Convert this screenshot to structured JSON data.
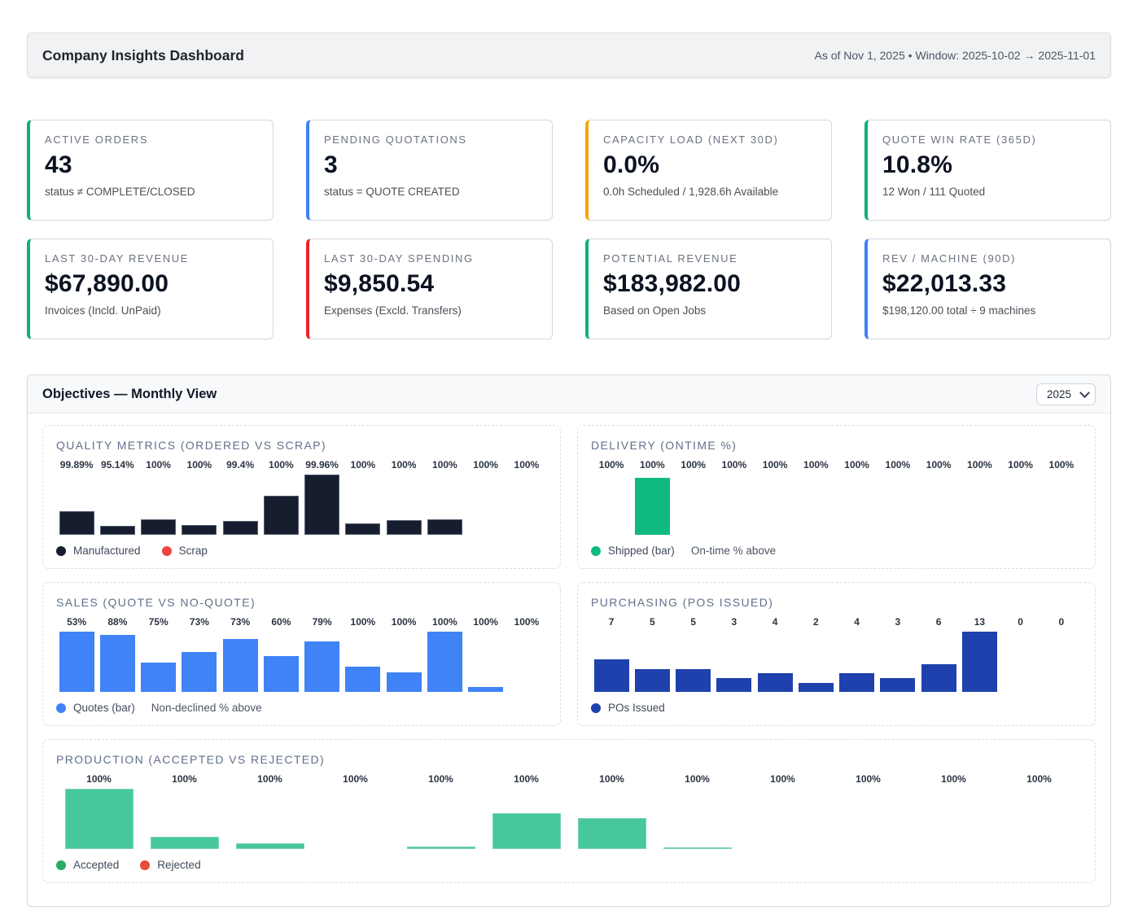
{
  "header": {
    "title": "Company Insights Dashboard",
    "meta": "As of Nov 1, 2025 • Window: 2025-10-02 → 2025-11-01"
  },
  "kpis": [
    {
      "label": "ACTIVE ORDERS",
      "value": "43",
      "sub": "status ≠ COMPLETE/CLOSED",
      "accent": "#12b076"
    },
    {
      "label": "PENDING QUOTATIONS",
      "value": "3",
      "sub": "status = QUOTE CREATED",
      "accent": "#3c82f6"
    },
    {
      "label": "CAPACITY LOAD (NEXT 30D)",
      "value": "0.0%",
      "sub": "0.0h Scheduled / 1,928.6h Available",
      "accent": "#f6a609"
    },
    {
      "label": "QUOTE WIN RATE (365D)",
      "value": "10.8%",
      "sub": "12 Won / 111 Quoted",
      "accent": "#12b076"
    },
    {
      "label": "LAST 30-DAY REVENUE",
      "value": "$67,890.00",
      "sub": "Invoices (Incld. UnPaid)",
      "accent": "#12b076"
    },
    {
      "label": "LAST 30-DAY SPENDING",
      "value": "$9,850.54",
      "sub": "Expenses (Excld. Transfers)",
      "accent": "#e8252a"
    },
    {
      "label": "POTENTIAL REVENUE",
      "value": "$183,982.00",
      "sub": "Based on Open Jobs",
      "accent": "#12b076"
    },
    {
      "label": "REV / MACHINE (90D)",
      "value": "$22,013.33",
      "sub": "$198,120.00 total ÷ 9 machines",
      "accent": "#3c82f6"
    }
  ],
  "objectives": {
    "title": "Objectives — Monthly View",
    "year_selector": {
      "value": "2025"
    }
  },
  "chart_data": [
    {
      "id": "quality",
      "type": "bar",
      "title": "QUALITY METRICS (ORDERED VS SCRAP)",
      "value_labels": [
        "99.89%",
        "95.14%",
        "100%",
        "100%",
        "99.4%",
        "100%",
        "99.96%",
        "100%",
        "100%",
        "100%",
        "100%",
        "100%"
      ],
      "bar_heights_pct": [
        39,
        15,
        26,
        16,
        23,
        65,
        100,
        19,
        24,
        26,
        0,
        0
      ],
      "bar_color": "#161d2e",
      "bar_border": "rgba(148,163,184,0.5)",
      "legend": [
        {
          "label": "Manufactured",
          "color": "#161d2e"
        },
        {
          "label": "Scrap",
          "color": "#ef4444"
        }
      ]
    },
    {
      "id": "delivery",
      "type": "bar",
      "title": "DELIVERY (ONTIME %)",
      "value_labels": [
        "100%",
        "100%",
        "100%",
        "100%",
        "100%",
        "100%",
        "100%",
        "100%",
        "100%",
        "100%",
        "100%",
        "100%"
      ],
      "bar_heights_pct": [
        0,
        95,
        0,
        0,
        0,
        0,
        0,
        0,
        0,
        0,
        0,
        0
      ],
      "bar_color": "#10b981",
      "legend": [
        {
          "label": "Shipped (bar)",
          "color": "#10b981"
        }
      ],
      "legend_note": "On-time % above"
    },
    {
      "id": "sales",
      "type": "bar",
      "title": "SALES (QUOTE VS NO-QUOTE)",
      "value_labels": [
        "53%",
        "88%",
        "75%",
        "73%",
        "73%",
        "60%",
        "79%",
        "100%",
        "100%",
        "100%",
        "100%",
        "100%"
      ],
      "bar_heights_pct": [
        100,
        95,
        48,
        66,
        88,
        59,
        84,
        42,
        32,
        100,
        8,
        0
      ],
      "bar_color": "#3f83f6",
      "legend": [
        {
          "label": "Quotes (bar)",
          "color": "#3f83f6"
        }
      ],
      "legend_note": "Non-declined % above"
    },
    {
      "id": "purchasing",
      "type": "bar",
      "title": "PURCHASING (POS ISSUED)",
      "value_labels": [
        "7",
        "5",
        "5",
        "3",
        "4",
        "2",
        "4",
        "3",
        "6",
        "13",
        "0",
        "0"
      ],
      "values": [
        7,
        5,
        5,
        3,
        4,
        2,
        4,
        3,
        6,
        13,
        0,
        0
      ],
      "bar_heights_pct": [
        54,
        38,
        38,
        23,
        31,
        15,
        31,
        23,
        46,
        100,
        0,
        0
      ],
      "bar_color": "#1f41ad",
      "legend": [
        {
          "label": "POs Issued",
          "color": "#1f41ad"
        }
      ]
    },
    {
      "id": "production",
      "type": "bar",
      "title": "PRODUCTION (ACCEPTED VS REJECTED)",
      "value_labels": [
        "100%",
        "100%",
        "100%",
        "100%",
        "100%",
        "100%",
        "100%",
        "100%",
        "100%",
        "100%",
        "100%",
        "100%"
      ],
      "bar_heights_pct": [
        100,
        20,
        9,
        0,
        4,
        60,
        51,
        3,
        0,
        0,
        0,
        0
      ],
      "bar_color": "#47c89b",
      "bar_border": "rgba(127,215,181,0.9)",
      "legend": [
        {
          "label": "Accepted",
          "color": "#27ae60"
        },
        {
          "label": "Rejected",
          "color": "#e74c3c"
        }
      ]
    }
  ]
}
